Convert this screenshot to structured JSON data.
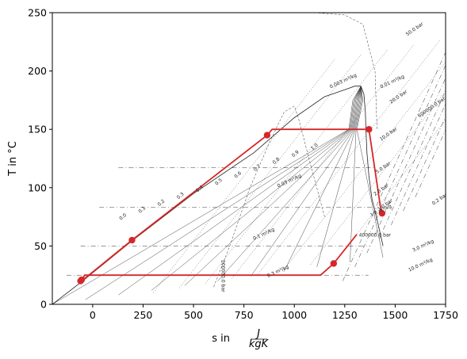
{
  "chart_data": {
    "type": "line",
    "title": "",
    "xlabel": "s in",
    "xlabel_unit_numerator": "J",
    "xlabel_unit_denominator": "kgK",
    "ylabel": "T in °C",
    "xlim": [
      -200,
      1750
    ],
    "ylim": [
      0,
      250
    ],
    "xticks": [
      0,
      250,
      500,
      750,
      1000,
      1250,
      1500,
      1750
    ],
    "yticks": [
      0,
      50,
      100,
      150,
      200,
      250
    ],
    "grid": false,
    "legend": "none",
    "colors": {
      "process": "#d62728",
      "isolines": "#333333"
    },
    "series": [
      {
        "role": "cycle-process",
        "segments": [
          [
            [
              -55,
              20
            ],
            [
              195,
              55
            ],
            [
              865,
              145
            ],
            [
              890,
              150
            ],
            [
              1370,
              150
            ],
            [
              1430,
              80
            ]
          ],
          [
            [
              -55,
              20
            ],
            [
              -40,
              25
            ],
            [
              1130,
              25
            ],
            [
              1195,
              35
            ],
            [
              1310,
              60
            ]
          ]
        ],
        "markers": [
          [
            -60,
            20
          ],
          [
            -55,
            21
          ],
          [
            195,
            55
          ],
          [
            865,
            145
          ],
          [
            1370,
            150
          ],
          [
            1435,
            78
          ],
          [
            1195,
            35
          ]
        ]
      }
    ],
    "saturation_dome": {
      "liquid": [
        [
          -200,
          0
        ],
        [
          -50,
          20
        ],
        [
          200,
          55
        ],
        [
          500,
          95
        ],
        [
          800,
          130
        ],
        [
          1000,
          160
        ],
        [
          1150,
          178
        ],
        [
          1250,
          184
        ],
        [
          1300,
          187
        ],
        [
          1330,
          187
        ]
      ],
      "vapor": [
        [
          1330,
          187
        ],
        [
          1345,
          180
        ],
        [
          1352,
          165
        ],
        [
          1355,
          150
        ],
        [
          1360,
          130
        ],
        [
          1370,
          110
        ],
        [
          1385,
          90
        ],
        [
          1400,
          80
        ],
        [
          1420,
          65
        ],
        [
          1440,
          50
        ]
      ]
    },
    "annotations": {
      "quality_labels": [
        "0.0",
        "0.1",
        "0.2",
        "0.3",
        "0.4",
        "0.5",
        "0.6",
        "0.7",
        "0.8",
        "0.9",
        "1.0"
      ],
      "pressure_labels": [
        "50.0 bar",
        "20.0 bar",
        "10.0 bar",
        "5.0 bar",
        "2.0 bar",
        "1.0 bar",
        "0.2 bar",
        "600000.0 bar",
        "400000.0 bar",
        "200000.0 bar"
      ],
      "density_labels": [
        "0.003 m³/kg",
        "0.01 m³/kg",
        "0.03 m³/kg",
        "0.1 m³/kg",
        "0.3 m³/kg",
        "1.0 m³/kg",
        "3.0 m³/kg",
        "10.0 m³/kg"
      ]
    }
  }
}
